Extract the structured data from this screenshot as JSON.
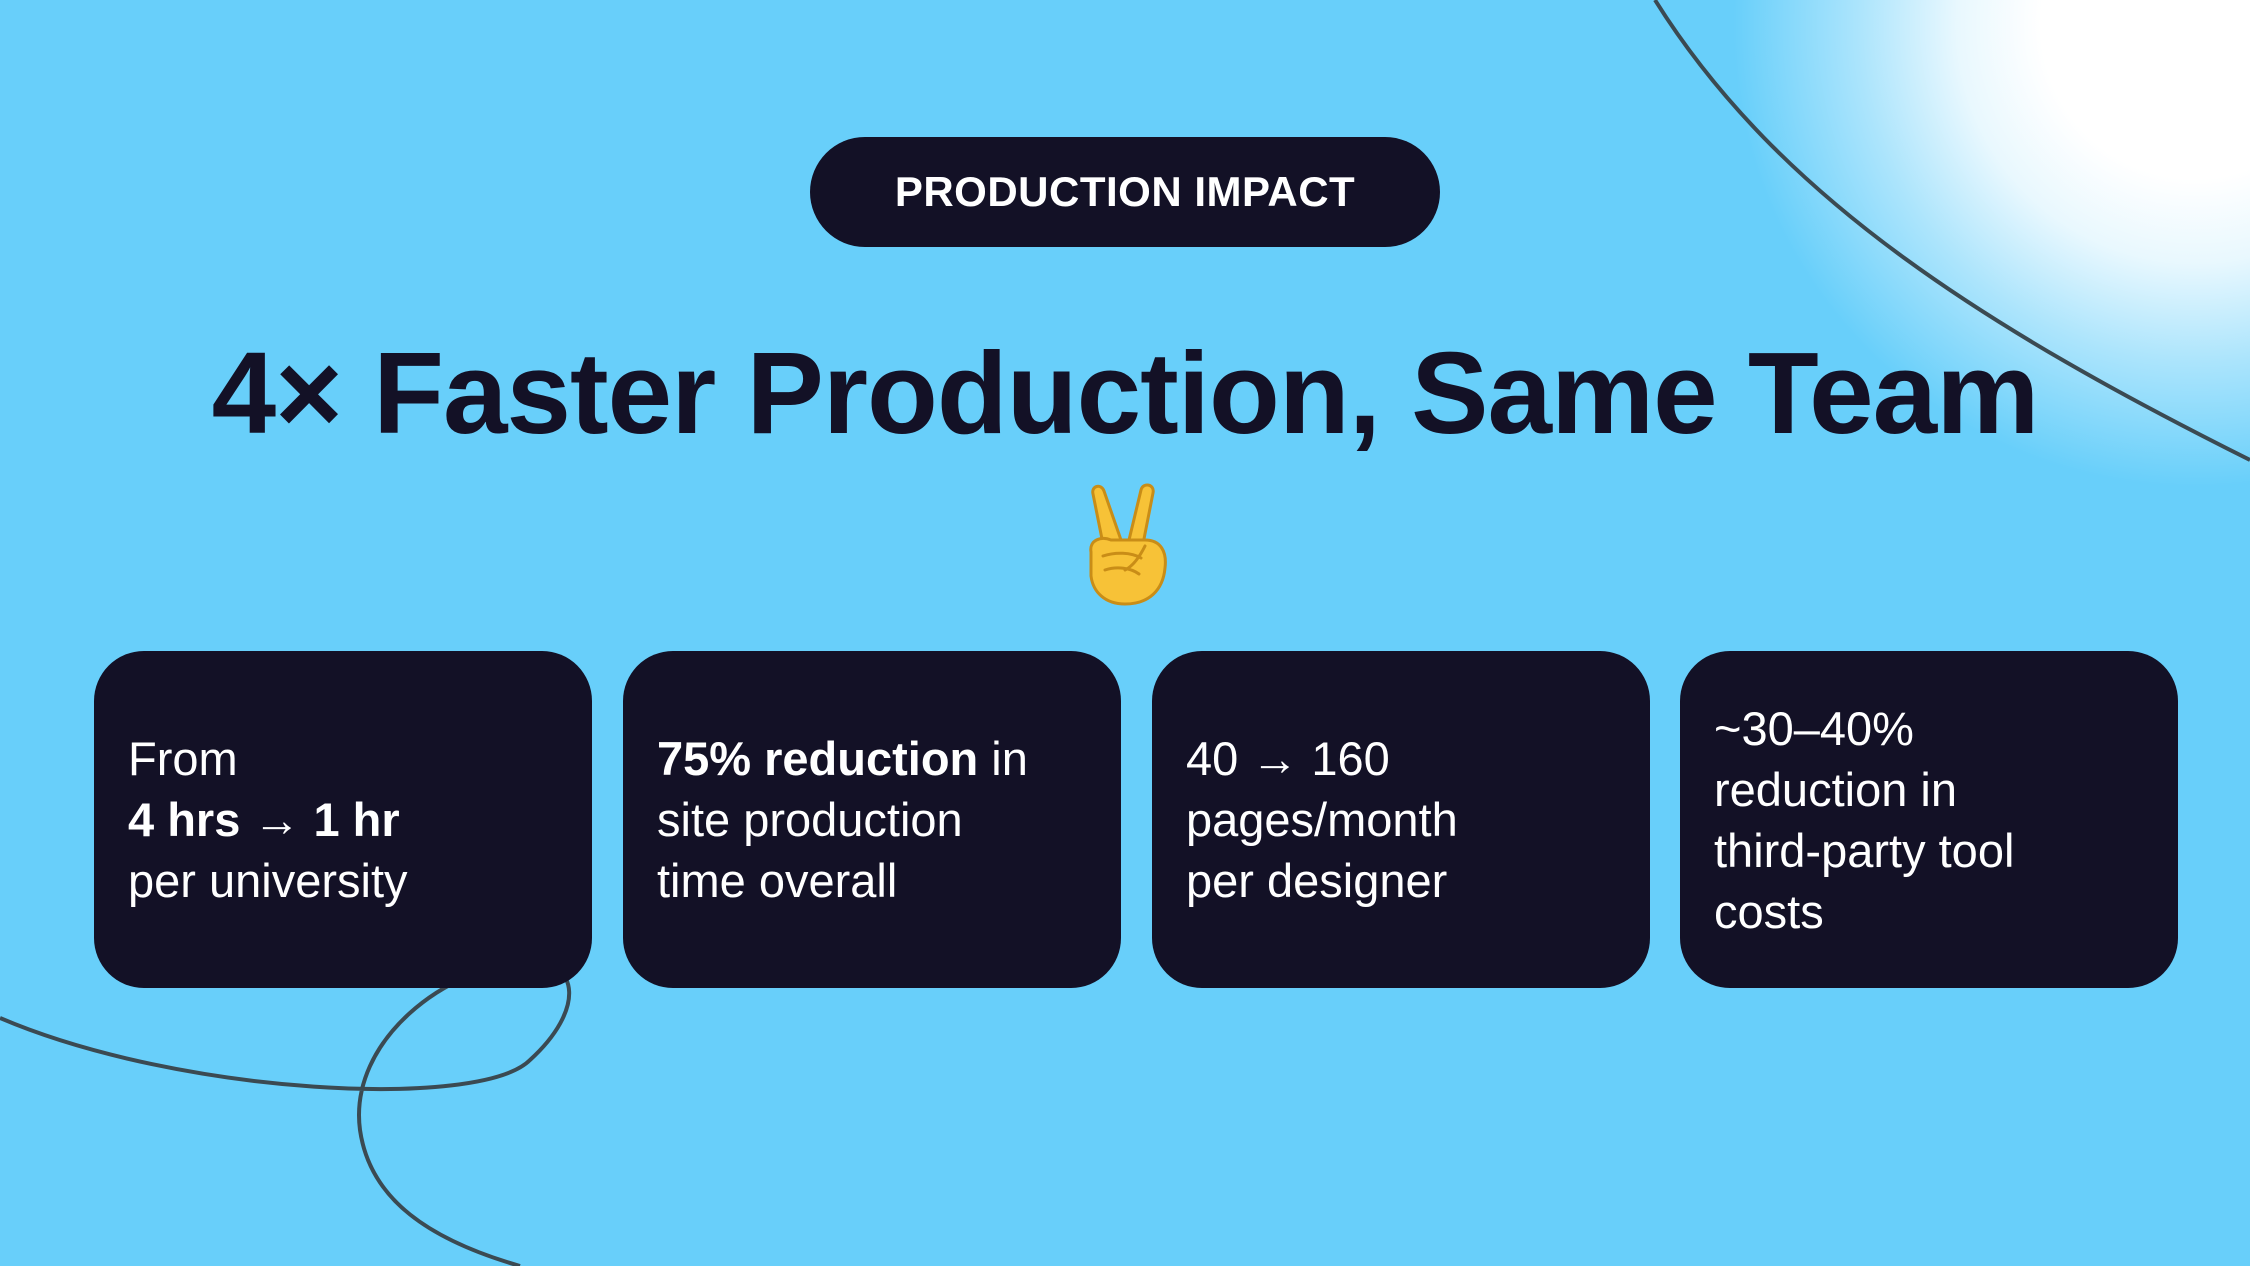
{
  "badge": {
    "label": "PRODUCTION IMPACT"
  },
  "headline": {
    "text": "4× Faster Production, Same Team"
  },
  "emoji": {
    "name": "victory-hand-emoji",
    "color": "#f7c237"
  },
  "cards": [
    {
      "line1": "From",
      "line2_bold": "4 hrs → 1 hr",
      "line3": "per university"
    },
    {
      "lead_bold": "75% reduction",
      "lead_rest": " in",
      "line2": "site production",
      "line3": "time overall"
    },
    {
      "line1": "40 → 160",
      "line2": "pages/month",
      "line3": "per designer"
    },
    {
      "line1": "~30–40%",
      "line2": "reduction in",
      "line3": "third-party tool",
      "line4": "costs"
    }
  ],
  "colors": {
    "background": "#68cffa",
    "dark": "#131126",
    "text_light": "#ffffff",
    "accent_line": "#3b4a52"
  }
}
